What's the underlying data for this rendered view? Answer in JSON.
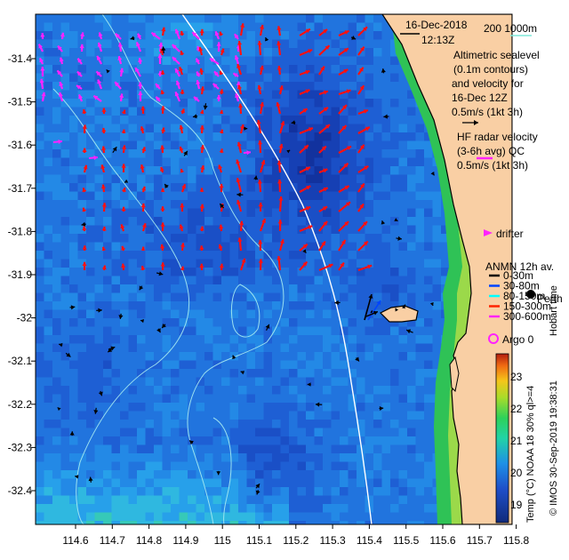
{
  "header": {
    "date": "16-Dec-2018",
    "time": "12:13Z",
    "contour_legend": "200 1000m"
  },
  "legend": {
    "altimetry_lines": [
      "Altimetric sealevel",
      "(0.1m contours)",
      "and velocity for",
      "16-Dec 12Z",
      "0.5m/s (1kt 3h)"
    ],
    "hf_radar_lines": [
      "HF radar velocity",
      "(3-6h avg) QC",
      "0.5m/s (1kt 3h)"
    ],
    "drifter_label": "drifter",
    "anmn_title": "ANMN 12h av.",
    "anmn_depths": [
      "0-30m",
      "30-80m",
      "80-150m",
      "150-300m",
      "300-600m"
    ],
    "argo_label": "Argo 0",
    "city_label": "Perth",
    "hobart_label": "Hobart time",
    "credit": "© IMOS 30-Sep-2019 19:38:31",
    "colorbar_title": "Temp (°C) NOAA 18 30% ql>=4",
    "colorbar_ticks": [
      "23",
      "22",
      "21",
      "20",
      "19"
    ],
    "colors": {
      "land": "#f9cfa4",
      "coast_green": "#28c05a",
      "hf_radar": "#ff22ff",
      "altimetry": "#ff1010",
      "anmn": [
        "#000000",
        "#0044ff",
        "#00ffff",
        "#ff2200",
        "#ff22ff"
      ]
    }
  },
  "axes": {
    "x_ticks": [
      "114.6",
      "114.7",
      "114.8",
      "114.9",
      "115",
      "115.1",
      "115.2",
      "115.3",
      "115.4",
      "115.5",
      "115.6",
      "115.7",
      "115.8"
    ],
    "y_ticks": [
      "-31.4",
      "-31.5",
      "-31.6",
      "-31.7",
      "-31.8",
      "-31.9",
      "-32",
      "-32.1",
      "-32.2",
      "-32.3",
      "-32.4"
    ]
  }
}
